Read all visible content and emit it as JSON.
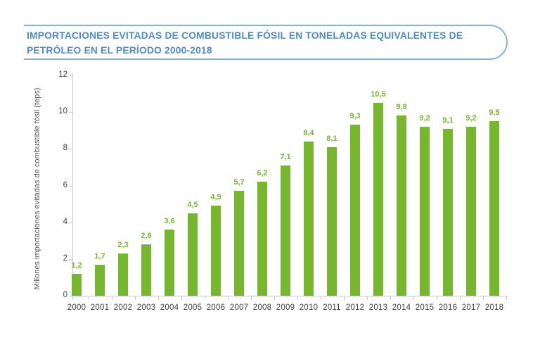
{
  "header": {
    "title_line1": "IMPORTACIONES EVITADAS DE COMBUSTIBLE FÓSIL EN TONELADAS EQUIVALENTES DE",
    "title_line2": "PETRÓLEO EN EL PERÍODO 2000-2018",
    "text_color": "#4e8bc7",
    "border_color": "#82b4e2"
  },
  "chart_data": {
    "type": "bar",
    "categories": [
      "2000",
      "2001",
      "2002",
      "2003",
      "2004",
      "2005",
      "2006",
      "2007",
      "2008",
      "2009",
      "2010",
      "2011",
      "2012",
      "2013",
      "2014",
      "2015",
      "2016",
      "2017",
      "2018"
    ],
    "values": [
      1.2,
      1.7,
      2.3,
      2.8,
      3.6,
      4.5,
      4.9,
      5.7,
      6.2,
      7.1,
      8.4,
      8.1,
      9.3,
      10.5,
      9.8,
      9.2,
      9.1,
      9.2,
      9.5
    ],
    "value_labels": [
      "1,2",
      "1,7",
      "2,3",
      "2,8",
      "3,6",
      "4,5",
      "4,9",
      "5,7",
      "6,2",
      "7,1",
      "8,4",
      "8,1",
      "9,3",
      "10,5",
      "9,8",
      "9,2",
      "9,1",
      "9,2",
      "9,5"
    ],
    "title": "",
    "xlabel": "",
    "ylabel": "Millones importaciones evitadas de combustible fósil (teps)",
    "y_ticks": [
      0,
      2,
      4,
      6,
      8,
      10,
      12
    ],
    "ylim": [
      0,
      12
    ],
    "grid": false,
    "legend_position": "none",
    "bar_color": "#76b72e",
    "value_label_color": "#76b72e",
    "axis_color": "#c9c9c9",
    "tick_label_color": "#404040"
  }
}
